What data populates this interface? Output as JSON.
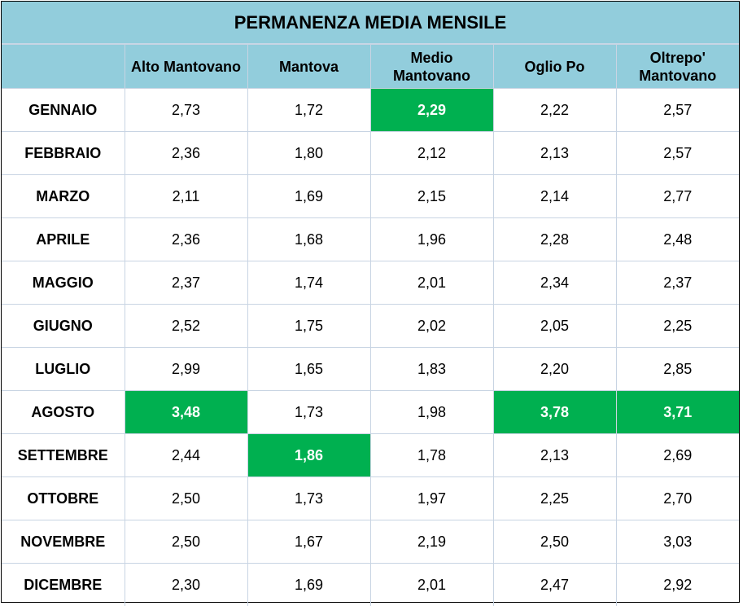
{
  "title": "PERMANENZA MEDIA MENSILE",
  "highlight_color": "#00b050",
  "header_color": "#92cddc",
  "columns": [
    {
      "line1": "Alto Mantovano",
      "line2": ""
    },
    {
      "line1": "Mantova",
      "line2": ""
    },
    {
      "line1": "Medio",
      "line2": "Mantovano"
    },
    {
      "line1": "Oglio Po",
      "line2": ""
    },
    {
      "line1": "Oltrepo'",
      "line2": "Mantovano"
    }
  ],
  "rows": [
    {
      "month": "GENNAIO",
      "values": [
        "2,73",
        "1,72",
        "2,29",
        "2,22",
        "2,57"
      ],
      "highlight": [
        false,
        false,
        true,
        false,
        false
      ]
    },
    {
      "month": "FEBBRAIO",
      "values": [
        "2,36",
        "1,80",
        "2,12",
        "2,13",
        "2,57"
      ],
      "highlight": [
        false,
        false,
        false,
        false,
        false
      ]
    },
    {
      "month": "MARZO",
      "values": [
        "2,11",
        "1,69",
        "2,15",
        "2,14",
        "2,77"
      ],
      "highlight": [
        false,
        false,
        false,
        false,
        false
      ]
    },
    {
      "month": "APRILE",
      "values": [
        "2,36",
        "1,68",
        "1,96",
        "2,28",
        "2,48"
      ],
      "highlight": [
        false,
        false,
        false,
        false,
        false
      ]
    },
    {
      "month": "MAGGIO",
      "values": [
        "2,37",
        "1,74",
        "2,01",
        "2,34",
        "2,37"
      ],
      "highlight": [
        false,
        false,
        false,
        false,
        false
      ]
    },
    {
      "month": "GIUGNO",
      "values": [
        "2,52",
        "1,75",
        "2,02",
        "2,05",
        "2,25"
      ],
      "highlight": [
        false,
        false,
        false,
        false,
        false
      ]
    },
    {
      "month": "LUGLIO",
      "values": [
        "2,99",
        "1,65",
        "1,83",
        "2,20",
        "2,85"
      ],
      "highlight": [
        false,
        false,
        false,
        false,
        false
      ]
    },
    {
      "month": "AGOSTO",
      "values": [
        "3,48",
        "1,73",
        "1,98",
        "3,78",
        "3,71"
      ],
      "highlight": [
        true,
        false,
        false,
        true,
        true
      ]
    },
    {
      "month": "SETTEMBRE",
      "values": [
        "2,44",
        "1,86",
        "1,78",
        "2,13",
        "2,69"
      ],
      "highlight": [
        false,
        true,
        false,
        false,
        false
      ]
    },
    {
      "month": "OTTOBRE",
      "values": [
        "2,50",
        "1,73",
        "1,97",
        "2,25",
        "2,70"
      ],
      "highlight": [
        false,
        false,
        false,
        false,
        false
      ]
    },
    {
      "month": "NOVEMBRE",
      "values": [
        "2,50",
        "1,67",
        "2,19",
        "2,50",
        "3,03"
      ],
      "highlight": [
        false,
        false,
        false,
        false,
        false
      ]
    },
    {
      "month": "DICEMBRE",
      "values": [
        "2,30",
        "1,69",
        "2,01",
        "2,47",
        "2,92"
      ],
      "highlight": [
        false,
        false,
        false,
        false,
        false
      ]
    }
  ]
}
